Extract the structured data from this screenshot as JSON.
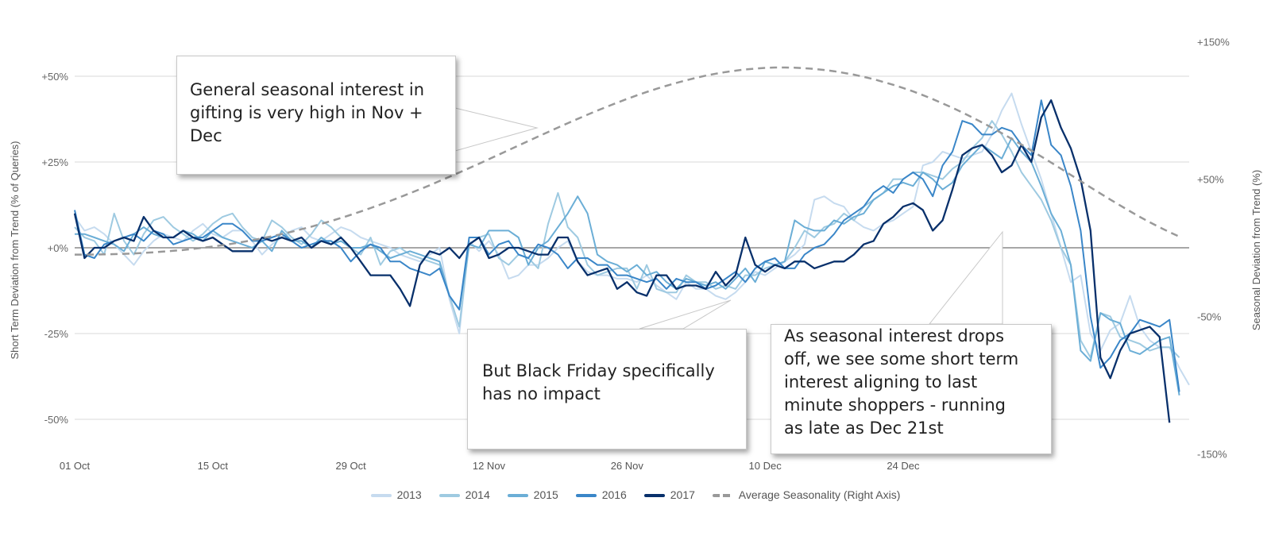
{
  "chart_data": {
    "type": "line",
    "x_ticks": [
      "01 Oct",
      "15 Oct",
      "29 Oct",
      "12 Nov",
      "26 Nov",
      "10 Dec",
      "24 Dec"
    ],
    "y_left": {
      "label": "Short Term Deviation from Trend (% of Queries)",
      "ticks": [
        "+50%",
        "+25%",
        "+0%",
        "-25%",
        "-50%"
      ],
      "ylim": [
        -60,
        55
      ]
    },
    "y_right": {
      "label": "Seasonal Deviation from Trend (%)",
      "ticks": [
        "+150%",
        "+50%",
        "-50%",
        "-150%"
      ],
      "ylim": [
        -150,
        150
      ]
    },
    "grid": true,
    "legend_position": "bottom",
    "series": [
      {
        "name": "2013",
        "color": "#c6dbef",
        "values": [
          9,
          5,
          6,
          4,
          1,
          -2,
          -5,
          -1,
          2,
          4,
          3,
          2,
          5,
          7,
          4,
          3,
          5,
          5,
          2,
          -2,
          1,
          3,
          5,
          6,
          3,
          2,
          4,
          6,
          5,
          3,
          2,
          1,
          0,
          -2,
          -3,
          -4,
          -2,
          0,
          -15,
          -25,
          2,
          -1,
          2,
          -2,
          -9,
          -8,
          -5,
          -5,
          -3,
          0,
          2,
          -4,
          -7,
          -8,
          -8,
          -9,
          -9,
          -10,
          -8,
          -11,
          -13,
          -15,
          -10,
          -12,
          -12,
          -14,
          -15,
          -13,
          -10,
          -7,
          -8,
          -6,
          -4,
          -2,
          1,
          14,
          15,
          13,
          12,
          8,
          6,
          5,
          7,
          8,
          10,
          12,
          24,
          25,
          28,
          27,
          26,
          27,
          28,
          33,
          40,
          45,
          36,
          28,
          20,
          10,
          0,
          -10,
          -8,
          -25,
          -30,
          -24,
          -22,
          -14,
          -23,
          -27,
          -29,
          -29,
          -35,
          -40
        ]
      },
      {
        "name": "2014",
        "color": "#9ecae1",
        "values": [
          6,
          3,
          2,
          -2,
          10,
          2,
          -2,
          4,
          8,
          9,
          6,
          4,
          2,
          4,
          7,
          9,
          10,
          6,
          3,
          2,
          8,
          6,
          3,
          1,
          4,
          8,
          6,
          3,
          0,
          -2,
          3,
          -5,
          -1,
          0,
          -2,
          -3,
          -4,
          -5,
          -14,
          -23,
          1,
          3,
          4,
          -3,
          -5,
          -2,
          -3,
          -6,
          7,
          16,
          6,
          3,
          -5,
          -8,
          -7,
          -6,
          -6,
          -12,
          -5,
          -12,
          -13,
          -13,
          -8,
          -10,
          -10,
          -12,
          -11,
          -12,
          -8,
          -8,
          -6,
          -5,
          -4,
          0,
          5,
          3,
          6,
          7,
          10,
          8,
          12,
          14,
          16,
          20,
          20,
          22,
          22,
          21,
          20,
          23,
          25,
          29,
          32,
          37,
          33,
          28,
          22,
          18,
          14,
          8,
          0,
          -5,
          -27,
          -32,
          -19,
          -20,
          -26,
          -27,
          -28,
          -30,
          -29,
          -29,
          -32
        ]
      },
      {
        "name": "2015",
        "color": "#6baed6",
        "values": [
          4,
          4,
          3,
          2,
          1,
          -1,
          4,
          6,
          4,
          3,
          3,
          5,
          4,
          2,
          5,
          3,
          2,
          1,
          0,
          2,
          -1,
          5,
          2,
          2,
          0,
          3,
          1,
          2,
          0,
          0,
          1,
          -1,
          -3,
          -2,
          -1,
          -2,
          -3,
          -4,
          -14,
          -18,
          1,
          0,
          5,
          5,
          5,
          3,
          -5,
          0,
          2,
          6,
          10,
          15,
          10,
          -2,
          -4,
          -5,
          -7,
          -5,
          -8,
          -7,
          -10,
          -12,
          -9,
          -10,
          -11,
          -10,
          -12,
          -9,
          -6,
          -10,
          -4,
          -5,
          -4,
          8,
          6,
          5,
          5,
          8,
          7,
          9,
          10,
          14,
          16,
          18,
          19,
          18,
          22,
          20,
          17,
          19,
          24,
          27,
          30,
          28,
          26,
          32,
          28,
          25,
          18,
          10,
          5,
          -5,
          -30,
          -33,
          -19,
          -21,
          -22,
          -30,
          -31,
          -29,
          -27,
          -26,
          -43
        ]
      },
      {
        "name": "2016",
        "color": "#3a86c8",
        "values": [
          11,
          -2,
          -3,
          1,
          2,
          3,
          4,
          2,
          5,
          4,
          1,
          2,
          3,
          3,
          5,
          7,
          7,
          5,
          2,
          2,
          3,
          4,
          2,
          0,
          1,
          2,
          2,
          0,
          -4,
          -1,
          1,
          0,
          -4,
          -4,
          -6,
          -7,
          -8,
          -6,
          -14,
          -18,
          3,
          3,
          -2,
          1,
          2,
          -2,
          -3,
          1,
          0,
          -2,
          -6,
          -3,
          -3,
          -5,
          -5,
          -8,
          -8,
          -9,
          -10,
          -9,
          -12,
          -9,
          -10,
          -10,
          -12,
          -11,
          -9,
          -7,
          -10,
          -6,
          -4,
          -3,
          -6,
          -6,
          -2,
          0,
          1,
          4,
          8,
          10,
          12,
          16,
          18,
          16,
          20,
          22,
          20,
          15,
          24,
          28,
          37,
          36,
          33,
          33,
          35,
          34,
          30,
          27,
          43,
          30,
          27,
          18,
          5,
          -20,
          -35,
          -32,
          -27,
          -25,
          -21,
          -22,
          -23,
          -21,
          -42
        ]
      },
      {
        "name": "2017",
        "color": "#08306b",
        "values": [
          10,
          -3,
          0,
          0,
          2,
          3,
          2,
          9,
          5,
          3,
          3,
          5,
          3,
          2,
          3,
          1,
          -1,
          -1,
          -1,
          3,
          2,
          3,
          2,
          3,
          0,
          2,
          1,
          3,
          0,
          -4,
          -8,
          -8,
          -8,
          -12,
          -17,
          -5,
          -1,
          -2,
          0,
          -3,
          1,
          3,
          -3,
          -2,
          0,
          0,
          -1,
          -2,
          -2,
          3,
          3,
          -4,
          -8,
          -7,
          -6,
          -12,
          -10,
          -13,
          -14,
          -8,
          -8,
          -12,
          -11,
          -11,
          -12,
          -7,
          -11,
          -8,
          3,
          -5,
          -7,
          -5,
          -6,
          -4,
          -4,
          -6,
          -5,
          -4,
          -4,
          -2,
          1,
          2,
          7,
          9,
          12,
          13,
          11,
          5,
          8,
          17,
          27,
          29,
          30,
          27,
          22,
          24,
          30,
          25,
          38,
          43,
          35,
          29,
          20,
          5,
          -32,
          -38,
          -30,
          -25,
          -24,
          -23,
          -26,
          -51
        ]
      },
      {
        "name": "Average Seasonality (Right Axis)",
        "color": "#999999",
        "dashed": true,
        "axis": "right",
        "values": [
          -5,
          -5,
          -4.9,
          -4.8,
          -4.6,
          -4.4,
          -4.1,
          -3.7,
          -3.3,
          -2.8,
          -2.2,
          -1.6,
          -0.8,
          0,
          0.9,
          1.9,
          3,
          4.2,
          5.5,
          6.9,
          8.4,
          10,
          11.7,
          13.5,
          15.4,
          17.4,
          19.5,
          21.7,
          24,
          26.4,
          28.9,
          31.5,
          34.1,
          36.9,
          39.7,
          42.6,
          45.5,
          48.6,
          51.7,
          54.8,
          58,
          61.2,
          64.5,
          67.8,
          71.1,
          74.4,
          77.7,
          81,
          84.3,
          87.5,
          90.7,
          93.8,
          96.9,
          99.9,
          102.8,
          105.6,
          108.3,
          110.9,
          113.4,
          115.7,
          117.9,
          120,
          121.9,
          123.7,
          125.3,
          126.7,
          127.9,
          128.9,
          129.8,
          130.4,
          130.9,
          131.2,
          131.2,
          131.1,
          130.7,
          130.2,
          129.4,
          128.5,
          127.3,
          126,
          124.4,
          122.7,
          120.7,
          118.6,
          116.3,
          113.8,
          111.1,
          108.2,
          105.1,
          101.9,
          98.5,
          94.9,
          91.2,
          87.4,
          83.4,
          79.3,
          75.1,
          70.8,
          66.4,
          62,
          57.5,
          53,
          48.5,
          44,
          39.5,
          35.1,
          30.8,
          26.6,
          22.5,
          18.6,
          14.9,
          11.4,
          8.1
        ]
      }
    ]
  },
  "callouts": {
    "c1": "General seasonal interest in gifting is very high in Nov + Dec",
    "c2": "But Black Friday specifically has no impact",
    "c3_lines": [
      "As seasonal interest drops",
      "off, we see some short term",
      "interest aligning to last",
      "minute shoppers - running",
      "as late as Dec 21st"
    ]
  }
}
